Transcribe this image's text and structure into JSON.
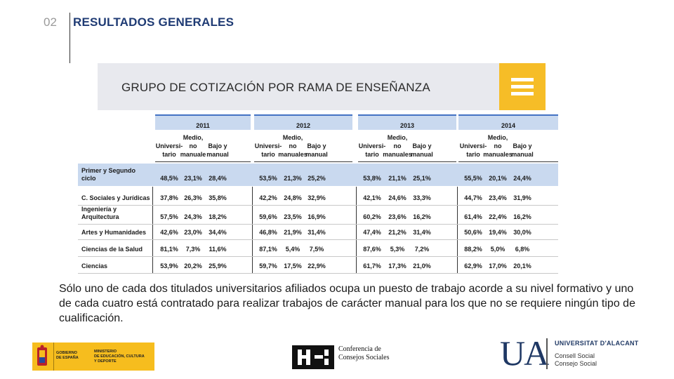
{
  "header": {
    "number": "02",
    "title": "RESULTADOS GENERALES"
  },
  "banner": {
    "text": "GRUPO DE COTIZACIÓN POR RAMA DE ENSEÑANZA",
    "icon": "menu-icon",
    "accent_color": "#f6bd27"
  },
  "table": {
    "years": [
      "2011",
      "2012",
      "2013",
      "2014"
    ],
    "columns": [
      [
        "Universi-",
        "tario"
      ],
      [
        "Medio,",
        "no",
        "manuale"
      ],
      [
        "Bajo y",
        "manual"
      ],
      [
        "Universi-",
        "tario"
      ],
      [
        "Medio,",
        "no",
        "manuales"
      ],
      [
        "Bajo y",
        "manual"
      ],
      [
        "Universi-",
        "tario"
      ],
      [
        "Medio,",
        "no",
        "manuales"
      ],
      [
        "Bajo y",
        "manual"
      ],
      [
        "Universi-",
        "tario"
      ],
      [
        "Medio,",
        "no",
        "manuales"
      ],
      [
        "Bajo y",
        "manual"
      ]
    ],
    "rows": [
      {
        "label": [
          "Primer y Segundo",
          "ciclo"
        ],
        "values": [
          "48,5%",
          "23,1%",
          "28,4%",
          "53,5%",
          "21,3%",
          "25,2%",
          "53,8%",
          "21,1%",
          "25,1%",
          "55,5%",
          "20,1%",
          "24,4%"
        ]
      },
      {
        "label": [
          "C. Sociales y Jurídicas"
        ],
        "values": [
          "37,8%",
          "26,3%",
          "35,8%",
          "42,2%",
          "24,8%",
          "32,9%",
          "42,1%",
          "24,6%",
          "33,3%",
          "44,7%",
          "23,4%",
          "31,9%"
        ]
      },
      {
        "label": [
          "Ingeniería y",
          "Arquitectura"
        ],
        "values": [
          "57,5%",
          "24,3%",
          "18,2%",
          "59,6%",
          "23,5%",
          "16,9%",
          "60,2%",
          "23,6%",
          "16,2%",
          "61,4%",
          "22,4%",
          "16,2%"
        ]
      },
      {
        "label": [
          "Artes y Humanidades"
        ],
        "values": [
          "42,6%",
          "23,0%",
          "34,4%",
          "46,8%",
          "21,9%",
          "31,4%",
          "47,4%",
          "21,2%",
          "31,4%",
          "50,6%",
          "19,4%",
          "30,0%"
        ]
      },
      {
        "label": [
          "Ciencias de la Salud"
        ],
        "values": [
          "81,1%",
          "7,3%",
          "11,6%",
          "87,1%",
          "5,4%",
          "7,5%",
          "87,6%",
          "5,3%",
          "7,2%",
          "88,2%",
          "5,0%",
          "6,8%"
        ]
      },
      {
        "label": [
          "Ciencias"
        ],
        "values": [
          "53,9%",
          "20,2%",
          "25,9%",
          "59,7%",
          "17,5%",
          "22,9%",
          "61,7%",
          "17,3%",
          "21,0%",
          "62,9%",
          "17,0%",
          "20,1%"
        ]
      }
    ],
    "header_color": "#c9d9ef"
  },
  "body": {
    "paragraph": "Sólo uno de cada dos titulados universitarios afiliados ocupa un puesto de trabajo acorde a su nivel formativo y uno de cada cuatro está contratado para realizar trabajos de carácter manual para los que no se requiere ningún tipo de cualificación."
  },
  "logos": {
    "gobierno": {
      "line1": "GOBIERNO",
      "line2": "DE ESPAÑA",
      "ministry1": "MINISTERIO",
      "ministry2": "DE EDUCACIÓN, CULTURA",
      "ministry3": "Y DEPORTE"
    },
    "conferencia": {
      "line1": "Conferencia de",
      "line2": "Consejos Sociales"
    },
    "ua": {
      "letters": "UA",
      "name": "UNIVERSITAT D'ALACANT",
      "line1": "Consell Social",
      "line2": "Consejo Social"
    }
  }
}
